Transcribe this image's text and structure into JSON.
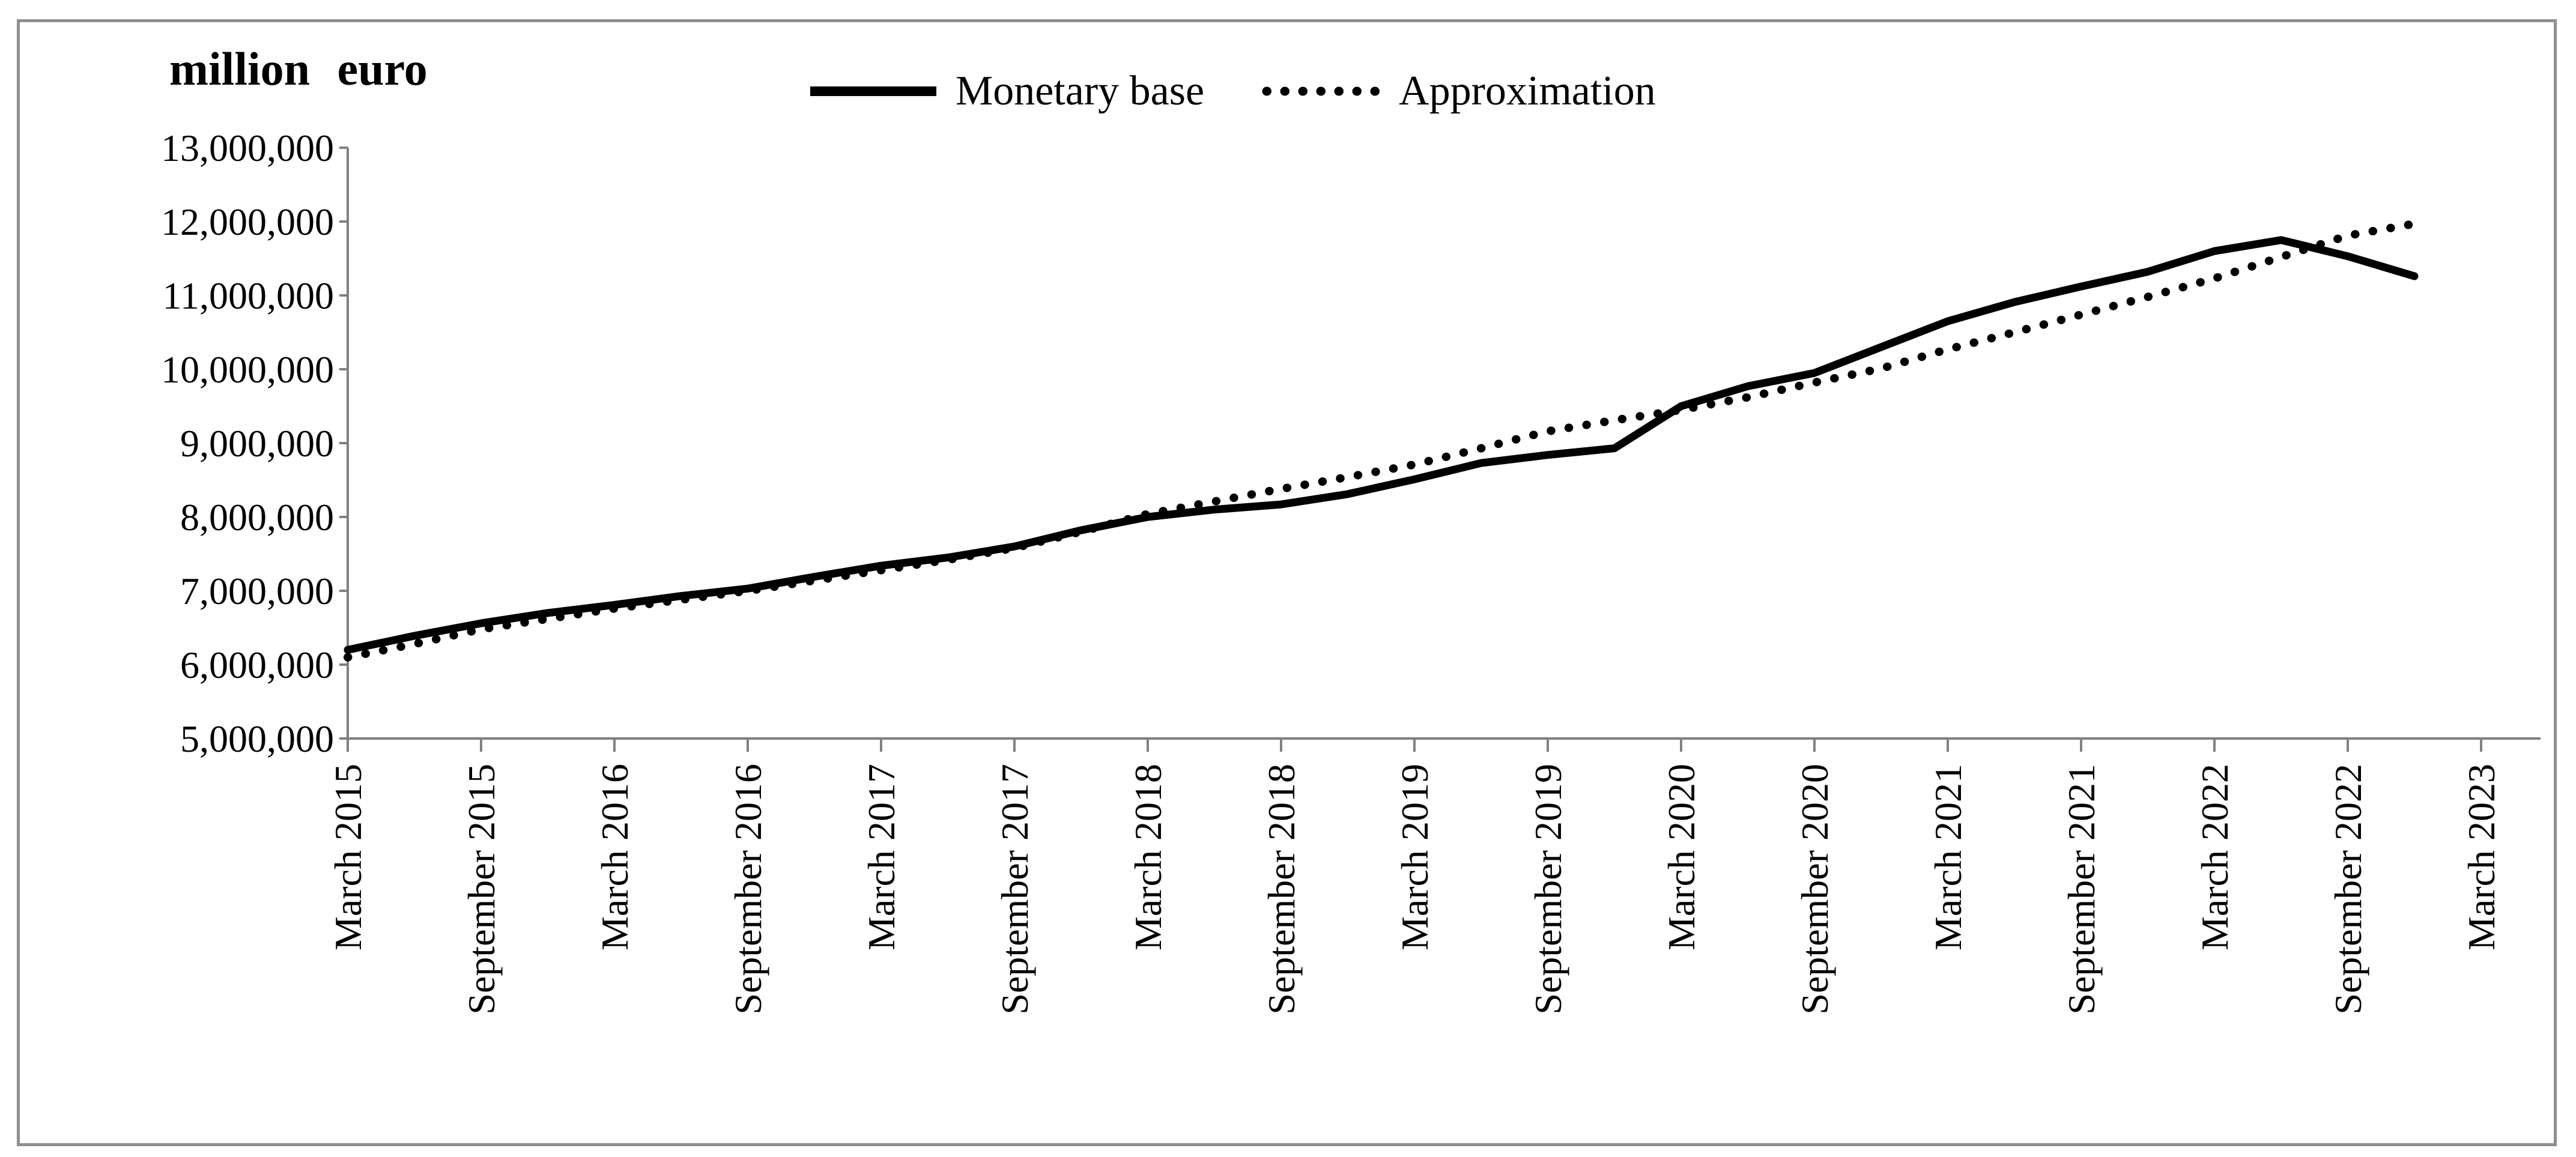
{
  "figure": {
    "background_color": "#ffffff",
    "frame_color": "#8f8f8f",
    "axis_color": "#808080",
    "series_color": "#000000"
  },
  "legend": {
    "items": [
      {
        "label": "Monetary base",
        "style": "solid"
      },
      {
        "label": "Approximation",
        "style": "dotted"
      }
    ]
  },
  "chart_data": {
    "type": "line",
    "title": "million euro",
    "xlabel": "",
    "ylabel": "million euro",
    "ylim": [
      5000000,
      13000000
    ],
    "ytick_step": 1000000,
    "grid": false,
    "legend_position": "top-center",
    "ytick_labels": [
      "5,000,000",
      "6,000,000",
      "7,000,000",
      "8,000,000",
      "9,000,000",
      "10,000,000",
      "11,000,000",
      "12,000,000",
      "13,000,000"
    ],
    "x_tick_labels": [
      "March 2015",
      "September 2015",
      "March 2016",
      "September 2016",
      "March 2017",
      "September 2017",
      "March 2018",
      "September 2018",
      "March 2019",
      "September 2019",
      "March 2020",
      "September 2020",
      "March 2021",
      "September 2021",
      "March 2022",
      "September 2022",
      "March 2023"
    ],
    "categories": [
      "March 2015",
      "June 2015",
      "September 2015",
      "December 2015",
      "March 2016",
      "June 2016",
      "September 2016",
      "December 2016",
      "March 2017",
      "June 2017",
      "September 2017",
      "December 2017",
      "March 2018",
      "June 2018",
      "September 2018",
      "December 2018",
      "March 2019",
      "June 2019",
      "September 2019",
      "December 2019",
      "March 2020",
      "June 2020",
      "September 2020",
      "December 2020",
      "March 2021",
      "June 2021",
      "September 2021",
      "December 2021",
      "March 2022",
      "June 2022",
      "September 2022",
      "December 2022"
    ],
    "series": [
      {
        "name": "Monetary base",
        "style": "solid",
        "color": "#000000",
        "values": [
          6200000,
          6390000,
          6560000,
          6700000,
          6810000,
          6930000,
          7030000,
          7190000,
          7340000,
          7450000,
          7600000,
          7820000,
          8000000,
          8100000,
          8170000,
          8310000,
          8510000,
          8730000,
          8840000,
          8930000,
          9500000,
          9770000,
          9950000,
          10300000,
          10650000,
          10910000,
          11120000,
          11320000,
          11600000,
          11750000,
          11530000,
          11260000
        ]
      },
      {
        "name": "Approximation",
        "style": "dotted",
        "color": "#000000",
        "values": [
          6100000,
          6280000,
          6480000,
          6620000,
          6760000,
          6880000,
          7000000,
          7140000,
          7280000,
          7420000,
          7580000,
          7800000,
          8040000,
          8210000,
          8380000,
          8540000,
          8710000,
          8930000,
          9160000,
          9310000,
          9450000,
          9620000,
          9820000,
          10010000,
          10270000,
          10500000,
          10740000,
          10980000,
          11230000,
          11520000,
          11810000,
          11970000
        ]
      }
    ]
  }
}
